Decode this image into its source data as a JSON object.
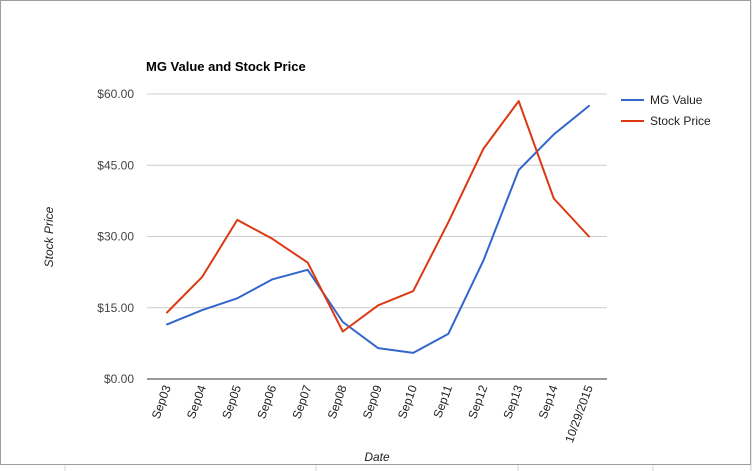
{
  "chart_data": {
    "type": "line",
    "title": "MG Value and Stock Price",
    "xlabel": "Date",
    "ylabel": "Stock Price",
    "categories": [
      "Sep03",
      "Sep04",
      "Sep05",
      "Sep06",
      "Sep07",
      "Sep08",
      "Sep09",
      "Sep10",
      "Sep11",
      "Sep12",
      "Sep13",
      "Sep14",
      "10/29/2015"
    ],
    "ylim": [
      0,
      60
    ],
    "yticks": [
      0,
      15,
      30,
      45,
      60
    ],
    "ytick_labels": [
      "$0.00",
      "$15.00",
      "$30.00",
      "$45.00",
      "$60.00"
    ],
    "grid": true,
    "legend_position": "right",
    "series": [
      {
        "name": "MG Value",
        "color": "#3366cc",
        "values": [
          11.5,
          14.5,
          17.0,
          21.0,
          23.0,
          12.0,
          6.5,
          5.5,
          9.5,
          25.0,
          44.0,
          51.5,
          57.5
        ]
      },
      {
        "name": "Stock Price",
        "color": "#dc3912",
        "values": [
          14.0,
          21.5,
          33.5,
          29.5,
          24.5,
          10.0,
          15.5,
          18.5,
          33.0,
          48.5,
          58.5,
          38.0,
          30.0
        ]
      }
    ]
  }
}
